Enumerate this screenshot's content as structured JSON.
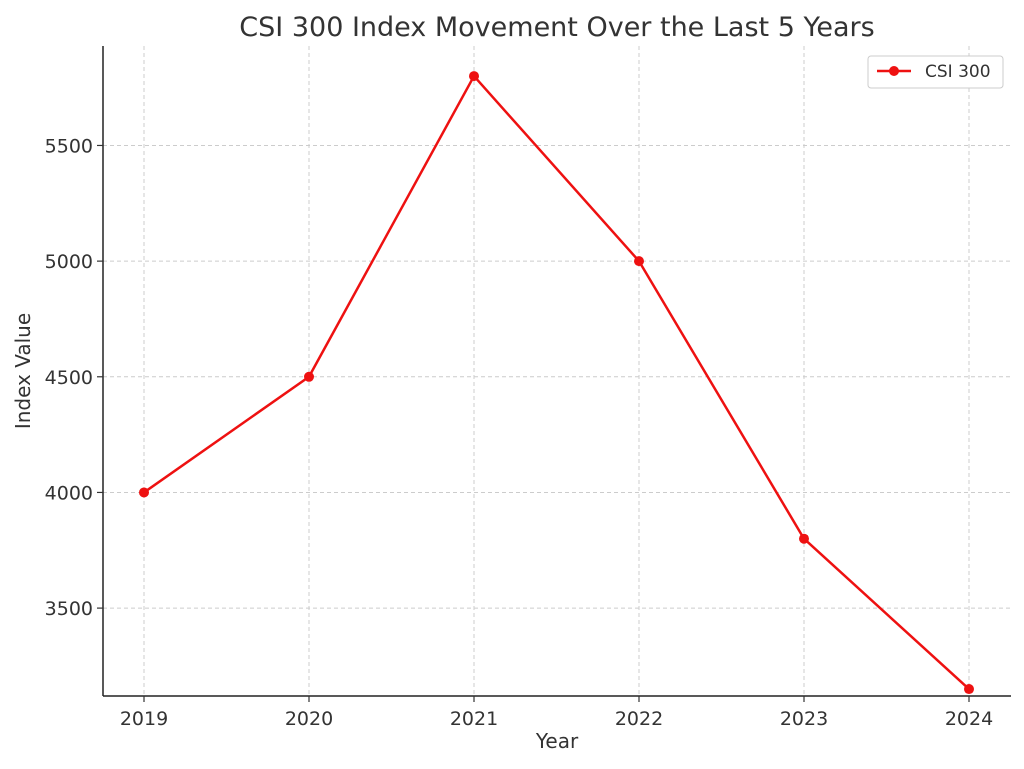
{
  "chart_data": {
    "type": "line",
    "title": "CSI 300 Index Movement Over the Last 5 Years",
    "xlabel": "Year",
    "ylabel": "Index Value",
    "x": [
      "2019",
      "2020",
      "2021",
      "2022",
      "2023",
      "2024"
    ],
    "yticks": [
      "3500",
      "4000",
      "4500",
      "5000",
      "5500"
    ],
    "ylim": [
      3120,
      5930
    ],
    "grid": true,
    "legend": {
      "position": "top-right"
    },
    "series": [
      {
        "name": "CSI 300",
        "color": "#ee1111",
        "marker": "circle",
        "values": [
          4000,
          4500,
          5800,
          5000,
          3800,
          3150
        ]
      }
    ]
  }
}
